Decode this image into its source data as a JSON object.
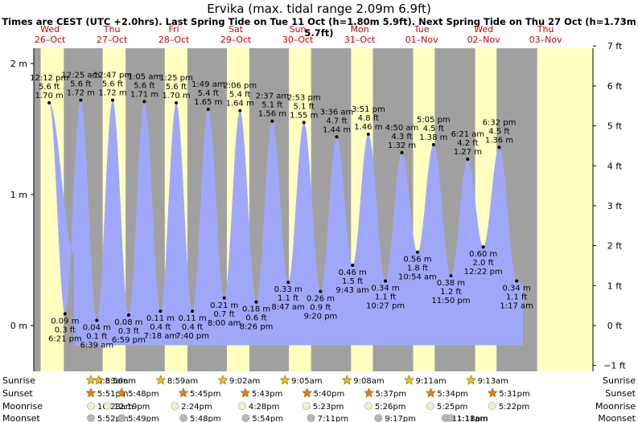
{
  "title": "Ervika (max. tidal range 2.09m 6.9ft)",
  "subtitle": "Times are CEST (UTC +2.0hrs). Last Spring Tide on Tue 11 Oct (h=1.80m 5.9ft). Next Spring Tide on Thu 27 Oct (h=1.73m 5.7ft)",
  "chart_data": {
    "type": "area",
    "title": "Ervika (max. tidal range 2.09m 6.9ft)",
    "ylim_m": [
      -0.2,
      2.08
    ],
    "y_ticks_m": [
      {
        "v": 2,
        "t": "2 m"
      },
      {
        "v": 1,
        "t": "1 m"
      },
      {
        "v": 0,
        "t": "0 m"
      }
    ],
    "y_ticks_ft": [
      {
        "v": 7,
        "t": "7 ft"
      },
      {
        "v": 6,
        "t": "6 ft"
      },
      {
        "v": 5,
        "t": "5 ft"
      },
      {
        "v": 4,
        "t": "4 ft"
      },
      {
        "v": 3,
        "t": "3 ft"
      },
      {
        "v": 2,
        "t": "2 ft"
      },
      {
        "v": 1,
        "t": "1 ft"
      },
      {
        "v": 0,
        "t": "0 ft"
      },
      {
        "v": -1,
        "t": "−1 ft"
      }
    ],
    "days": [
      {
        "dow": "Wed",
        "date": "26–Oct"
      },
      {
        "dow": "Thu",
        "date": "27–Oct"
      },
      {
        "dow": "Fri",
        "date": "28–Oct"
      },
      {
        "dow": "Sat",
        "date": "29–Oct"
      },
      {
        "dow": "Sun",
        "date": "30–Oct"
      },
      {
        "dow": "Mon",
        "date": "31–Oct"
      },
      {
        "dow": "Tue",
        "date": "01–Nov"
      },
      {
        "dow": "Wed",
        "date": "02–Nov"
      },
      {
        "dow": "Thu",
        "date": "03–Nov"
      }
    ],
    "tides": [
      {
        "time": "12:12 pm",
        "ft": "5.6 ft",
        "m": "1.70 m",
        "h": 1.7,
        "type": "high",
        "day": 0
      },
      {
        "time": "6:21 pm",
        "ft": "0.3 ft",
        "m": "0.09 m",
        "h": 0.09,
        "type": "low",
        "day": 0
      },
      {
        "time": "12:25 am",
        "ft": "5.6 ft",
        "m": "1.72 m",
        "h": 1.72,
        "type": "high",
        "day": 1
      },
      {
        "time": "6:39 am",
        "ft": "0.1 ft",
        "m": "0.04 m",
        "h": 0.04,
        "type": "low",
        "day": 1
      },
      {
        "time": "12:47 pm",
        "ft": "5.6 ft",
        "m": "1.72 m",
        "h": 1.72,
        "type": "high",
        "day": 1
      },
      {
        "time": "6:59 pm",
        "ft": "0.3 ft",
        "m": "0.08 m",
        "h": 0.08,
        "type": "low",
        "day": 1
      },
      {
        "time": "1:05 am",
        "ft": "5.6 ft",
        "m": "1.71 m",
        "h": 1.71,
        "type": "high",
        "day": 2
      },
      {
        "time": "7:18 am",
        "ft": "0.4 ft",
        "m": "0.11 m",
        "h": 0.11,
        "type": "low",
        "day": 2
      },
      {
        "time": "1:25 pm",
        "ft": "5.6 ft",
        "m": "1.70 m",
        "h": 1.7,
        "type": "high",
        "day": 2
      },
      {
        "time": "7:40 pm",
        "ft": "0.4 ft",
        "m": "0.11 m",
        "h": 0.11,
        "type": "low",
        "day": 2
      },
      {
        "time": "1:49 am",
        "ft": "5.4 ft",
        "m": "1.65 m",
        "h": 1.65,
        "type": "high",
        "day": 3
      },
      {
        "time": "8:00 am",
        "ft": "0.7 ft",
        "m": "0.21 m",
        "h": 0.21,
        "type": "low",
        "day": 3
      },
      {
        "time": "2:06 pm",
        "ft": "5.4 ft",
        "m": "1.64 m",
        "h": 1.64,
        "type": "high",
        "day": 3
      },
      {
        "time": "8:26 pm",
        "ft": "0.6 ft",
        "m": "0.18 m",
        "h": 0.18,
        "type": "low",
        "day": 3
      },
      {
        "time": "2:37 am",
        "ft": "5.1 ft",
        "m": "1.56 m",
        "h": 1.56,
        "type": "high",
        "day": 4
      },
      {
        "time": "8:47 am",
        "ft": "1.1 ft",
        "m": "0.33 m",
        "h": 0.33,
        "type": "low",
        "day": 4
      },
      {
        "time": "2:53 pm",
        "ft": "5.1 ft",
        "m": "1.55 m",
        "h": 1.55,
        "type": "high",
        "day": 4
      },
      {
        "time": "9:20 pm",
        "ft": "0.9 ft",
        "m": "0.26 m",
        "h": 0.26,
        "type": "low",
        "day": 4
      },
      {
        "time": "3:36 am",
        "ft": "4.7 ft",
        "m": "1.44 m",
        "h": 1.44,
        "type": "high",
        "day": 5
      },
      {
        "time": "9:43 am",
        "ft": "1.5 ft",
        "m": "0.46 m",
        "h": 0.46,
        "type": "low",
        "day": 5
      },
      {
        "time": "3:51 pm",
        "ft": "4.8 ft",
        "m": "1.46 m",
        "h": 1.46,
        "type": "high",
        "day": 5
      },
      {
        "time": "10:27 pm",
        "ft": "1.1 ft",
        "m": "0.34 m",
        "h": 0.34,
        "type": "low",
        "day": 5
      },
      {
        "time": "4:50 am",
        "ft": "4.3 ft",
        "m": "1.32 m",
        "h": 1.32,
        "type": "high",
        "day": 6
      },
      {
        "time": "10:54 am",
        "ft": "1.8 ft",
        "m": "0.56 m",
        "h": 0.56,
        "type": "low",
        "day": 6
      },
      {
        "time": "5:05 pm",
        "ft": "4.5 ft",
        "m": "1.38 m",
        "h": 1.38,
        "type": "high",
        "day": 6
      },
      {
        "time": "11:50 pm",
        "ft": "1.2 ft",
        "m": "0.38 m",
        "h": 0.38,
        "type": "low",
        "day": 6
      },
      {
        "time": "6:21 am",
        "ft": "4.2 ft",
        "m": "1.27 m",
        "h": 1.27,
        "type": "high",
        "day": 7
      },
      {
        "time": "12:22 pm",
        "ft": "2.0 ft",
        "m": "0.60 m",
        "h": 0.6,
        "type": "low",
        "day": 7
      },
      {
        "time": "6:32 pm",
        "ft": "4.5 ft",
        "m": "1.36 m",
        "h": 1.36,
        "type": "high",
        "day": 7
      },
      {
        "time": "1:17 am",
        "ft": "1.1 ft",
        "m": "0.34 m",
        "h": 0.34,
        "type": "low",
        "day": 8
      }
    ],
    "sunrise": [
      "8:53am",
      "8:56am",
      "8:59am",
      "9:02am",
      "9:05am",
      "9:08am",
      "9:11am",
      "9:13am"
    ],
    "sunset": [
      "5:51pm",
      "5:48pm",
      "5:45pm",
      "5:43pm",
      "5:40pm",
      "5:37pm",
      "5:34pm",
      "5:31pm"
    ],
    "moonrise": [
      "10:23am",
      "12:19pm",
      "2:24pm",
      "4:28pm",
      "5:23pm",
      "5:26pm",
      "5:25pm",
      "5:22pm"
    ],
    "moonset": [
      "5:52pm",
      "5:49pm",
      "5:48pm",
      "5:54pm",
      "7:11pm",
      "9:17pm",
      "11:18pm",
      "1:11am"
    ],
    "row_labels": {
      "sunrise": "Sunrise",
      "sunset": "Sunset",
      "moonrise": "Moonrise",
      "moonset": "Moonset"
    },
    "colors": {
      "night": "#a0a0a0",
      "day": "#ffffc0",
      "water": "#9fa8f8",
      "day_label": "#cc0000"
    }
  }
}
